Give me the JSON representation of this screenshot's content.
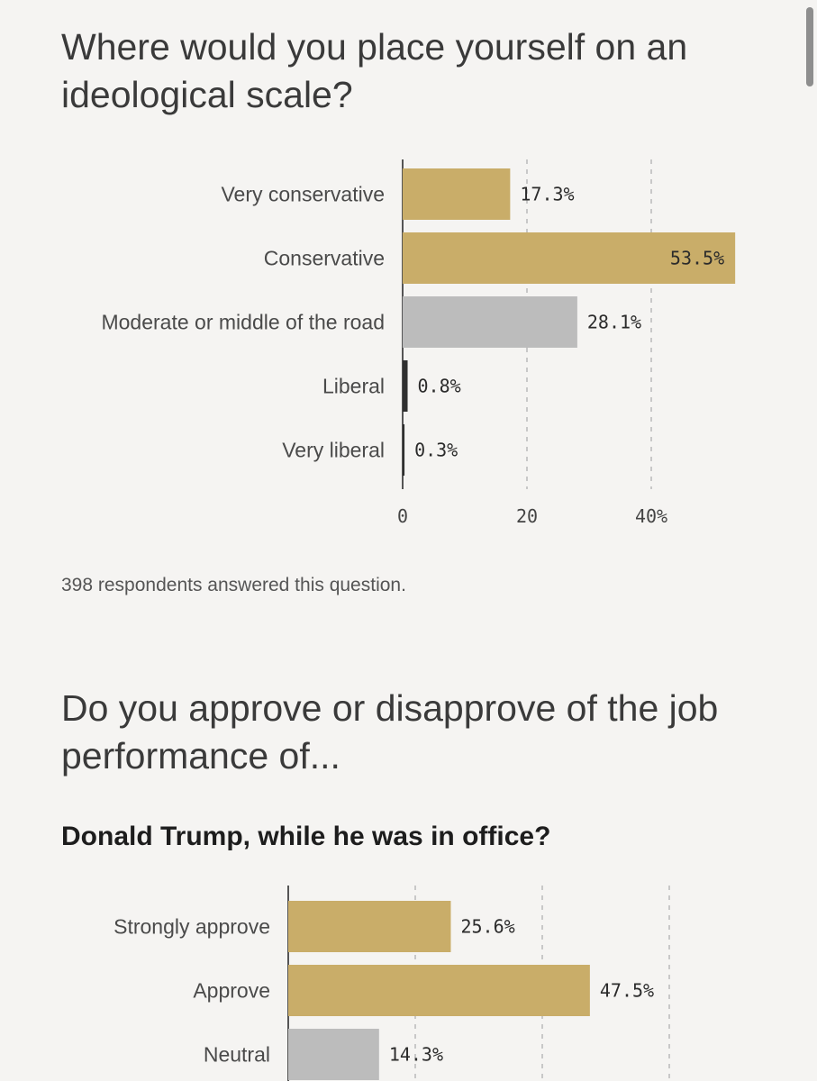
{
  "q1": {
    "title": "Where would you place yourself on an ideological scale?",
    "note": "398 respondents answered this question."
  },
  "q2": {
    "title": "Do you approve or disapprove of the job performance of...",
    "subtitle": "Donald Trump, while he was in office?"
  },
  "colors": {
    "gold": "#c9ad69",
    "gray": "#bcbcbc",
    "dark": "#2f2f2f",
    "grid": "#c8c8c8",
    "axis": "#555555"
  },
  "chart_data": [
    {
      "type": "bar",
      "orientation": "horizontal",
      "title": "Where would you place yourself on an ideological scale?",
      "categories": [
        "Very conservative",
        "Conservative",
        "Moderate or middle of the road",
        "Liberal",
        "Very liberal"
      ],
      "values": [
        17.3,
        53.5,
        28.1,
        0.8,
        0.3
      ],
      "value_labels": [
        "17.3%",
        "53.5%",
        "28.1%",
        "0.8%",
        "0.3%"
      ],
      "bar_colors": [
        "gold",
        "gold",
        "gray",
        "dark",
        "dark"
      ],
      "ticks": [
        0,
        20,
        40
      ],
      "tick_labels": [
        "0",
        "20",
        "40%"
      ],
      "xlim": [
        0,
        60
      ],
      "grid": true
    },
    {
      "type": "bar",
      "orientation": "horizontal",
      "title": "Donald Trump, while he was in office?",
      "categories": [
        "Strongly approve",
        "Approve",
        "Neutral"
      ],
      "values": [
        25.6,
        47.5,
        14.3
      ],
      "value_labels": [
        "25.6%",
        "47.5%",
        "14.3%"
      ],
      "bar_colors": [
        "gold",
        "gold",
        "gray"
      ],
      "ticks": [
        0,
        20,
        40,
        60
      ],
      "xlim": [
        0,
        60
      ],
      "grid": true
    }
  ]
}
